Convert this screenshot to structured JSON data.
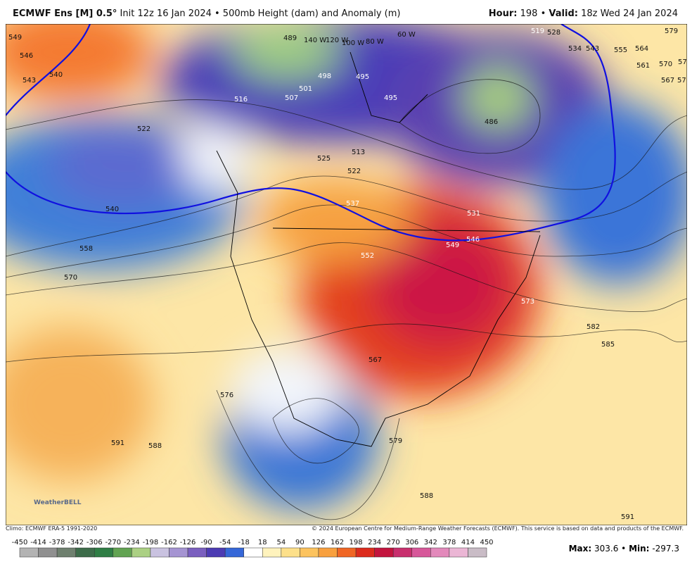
{
  "header": {
    "model": "ECMWF Ens [M] 0.5°",
    "subtitle": "Init 12z 16 Jan 2024 • 500mb Height (dam) and Anomaly (m)",
    "hour_label": "Hour:",
    "hour": "198",
    "separator": "•",
    "valid_label": "Valid:",
    "valid": "18z Wed 24 Jan 2024"
  },
  "map": {
    "logo": "WeatherBELL",
    "contour_labels": [
      "549",
      "546",
      "543",
      "540",
      "489",
      "140 W",
      "120 W",
      "100 W",
      "80 W",
      "60 W",
      "519",
      "528",
      "534",
      "543",
      "555",
      "564",
      "561",
      "570",
      "567",
      "573",
      "576",
      "579",
      "498",
      "501",
      "507",
      "516",
      "495",
      "495",
      "486",
      "513",
      "522",
      "525",
      "522",
      "537",
      "531",
      "540",
      "558",
      "549",
      "546",
      "552",
      "570",
      "573",
      "582",
      "585",
      "567",
      "576",
      "591",
      "588",
      "579",
      "588",
      "591"
    ]
  },
  "footer": {
    "climo": "Climo: ECMWF ERA-5 1991-2020",
    "copyright": "© 2024 European Centre for Medium-Range Weather Forecasts (ECMWF). This service is based on data and products of the ECMWF.",
    "colorbar_ticks": [
      -450,
      -414,
      -378,
      -342,
      -306,
      -270,
      -234,
      -198,
      -162,
      -126,
      -90,
      -54,
      -18,
      18,
      54,
      90,
      126,
      162,
      198,
      234,
      270,
      306,
      342,
      378,
      414,
      450
    ],
    "max_label": "Max:",
    "max": 303.6,
    "separator": "•",
    "min_label": "Min:",
    "min": -297.3
  }
}
